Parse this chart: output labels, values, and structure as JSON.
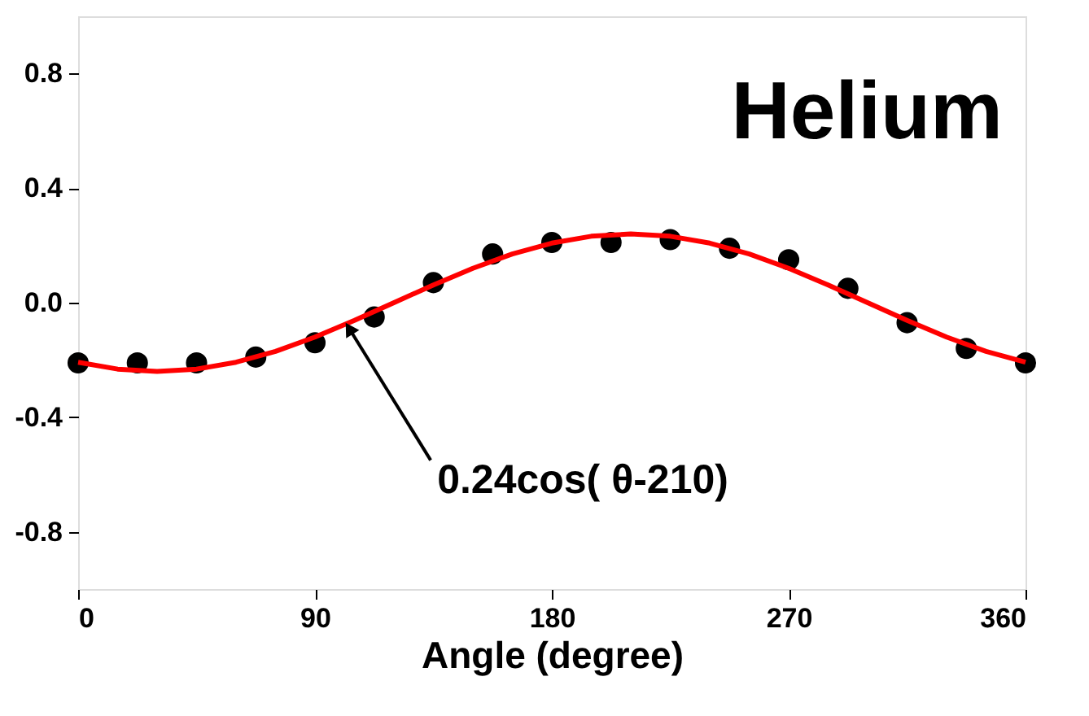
{
  "chart_data": {
    "type": "scatter",
    "xlabel": "Angle (degree)",
    "annotations": [
      "Helium",
      {
        "text": "0.24cos( θ-210)",
        "x": 103,
        "y": -0.09
      }
    ],
    "xlim": [
      0,
      360
    ],
    "xticks": [
      0,
      90,
      180,
      270,
      360
    ],
    "ylim": [
      -1.0,
      1.0
    ],
    "yticks": [
      -0.8,
      -0.4,
      {
        "value": 0,
        "label": "0.0"
      },
      0.4,
      0.8
    ],
    "grid": false,
    "series": [
      {
        "color": "#000000",
        "marker": "circle",
        "x": [
          0,
          22.5,
          45,
          67.5,
          90,
          112.5,
          135,
          157.5,
          180,
          202.5,
          225,
          247.5,
          270,
          292.5,
          315,
          337.5,
          360
        ],
        "values": [
          -0.21,
          -0.21,
          -0.21,
          -0.19,
          -0.14,
          -0.05,
          0.07,
          0.17,
          0.21,
          0.21,
          0.22,
          0.19,
          0.15,
          0.05,
          -0.07,
          -0.16,
          -0.21
        ]
      },
      {
        "type": "line",
        "color": "#ff0000",
        "marker": "none",
        "line_style": "solid",
        "x": [
          0,
          15,
          30,
          45,
          60,
          75,
          90,
          105,
          120,
          135,
          150,
          165,
          180,
          195,
          210,
          225,
          240,
          255,
          270,
          285,
          300,
          315,
          330,
          345,
          360
        ],
        "values": [
          -0.208,
          -0.232,
          -0.24,
          -0.232,
          -0.208,
          -0.17,
          -0.12,
          -0.062,
          0,
          0.062,
          0.12,
          0.17,
          0.208,
          0.232,
          0.24,
          0.232,
          0.208,
          0.17,
          0.12,
          0.062,
          0,
          -0.062,
          -0.12,
          -0.17,
          -0.208
        ]
      }
    ]
  }
}
